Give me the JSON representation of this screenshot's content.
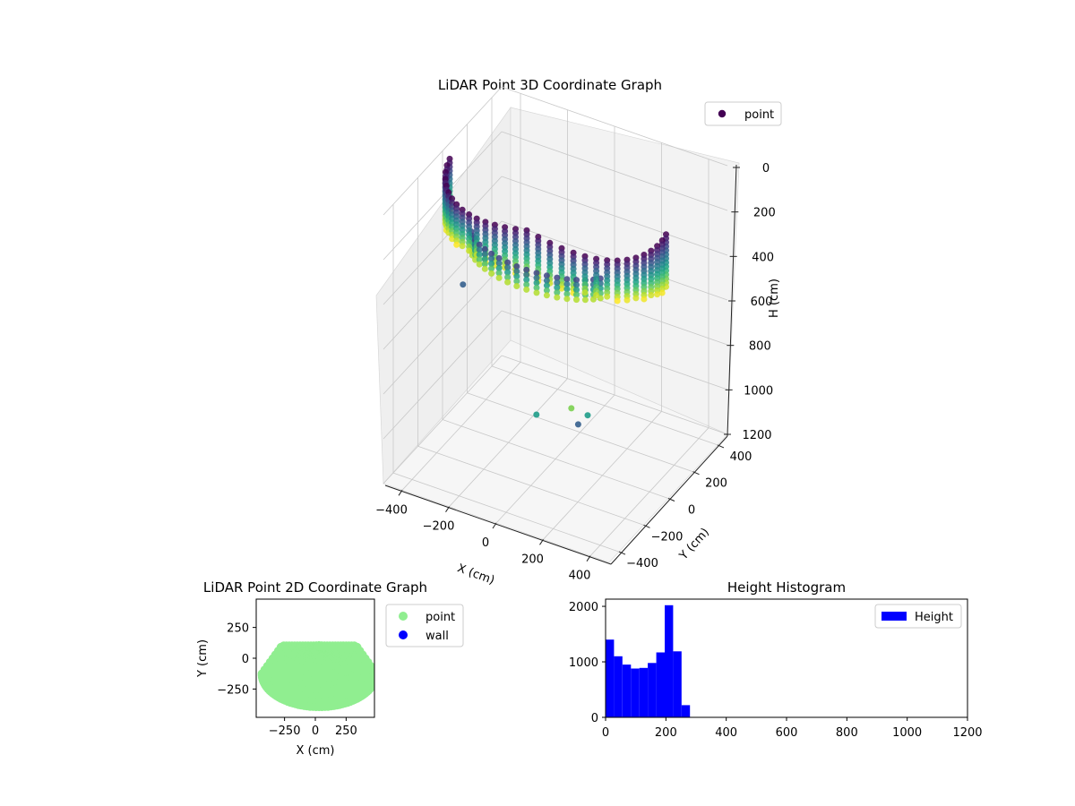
{
  "chart_data": [
    {
      "type": "scatter",
      "title": "LiDAR Point 3D Coordinate Graph",
      "xlabel": "X (cm)",
      "ylabel": "Y (cm)",
      "zlabel": "H (cm)",
      "xticks": [
        "−400",
        "−200",
        "0",
        "200",
        "400"
      ],
      "yticks": [
        "−400",
        "−200",
        "0",
        "200",
        "400"
      ],
      "zticks": [
        "0",
        "200",
        "400",
        "600",
        "800",
        "1000",
        "1200"
      ],
      "xlim": [
        -480,
        480
      ],
      "ylim": [
        -480,
        480
      ],
      "zlim": [
        1200,
        0
      ],
      "zinverted": true,
      "colormap": "viridis",
      "legend": {
        "entries": [
          "point"
        ],
        "location": "upper right"
      },
      "series_name": "point",
      "point_color": "#440154",
      "description_points": "Points arranged in vertical columns along an arc of radius about 460 cm around the sensor, heights 0–280 cm, plus a few scattered outliers.",
      "outliers": [
        {
          "x": -430,
          "y": 70,
          "h": 620
        },
        {
          "x": -60,
          "y": -40,
          "h": 1000
        },
        {
          "x": 120,
          "y": -100,
          "h": 870
        },
        {
          "x": 170,
          "y": -140,
          "h": 900
        },
        {
          "x": 200,
          "y": -120,
          "h": 860
        }
      ]
    },
    {
      "type": "scatter",
      "title": "LiDAR Point 2D Coordinate Graph",
      "xlabel": "X (cm)",
      "ylabel": "Y (cm)",
      "xticks": [
        "−250",
        "0",
        "250"
      ],
      "yticks": [
        "250",
        "0",
        "−250"
      ],
      "xlim": [
        -480,
        480
      ],
      "ylim": [
        -480,
        480
      ],
      "legend": {
        "entries": [
          "point",
          "wall"
        ],
        "location": "outside right"
      },
      "series": [
        {
          "name": "point",
          "color": "#90ee90"
        },
        {
          "name": "wall",
          "color": "#0000ff"
        }
      ]
    },
    {
      "type": "bar",
      "title": "Height Histogram",
      "xticks": [
        "0",
        "200",
        "400",
        "600",
        "800",
        "1000",
        "1200"
      ],
      "yticks": [
        "0",
        "1000",
        "2000"
      ],
      "xlim": [
        0,
        1200
      ],
      "ylim": [
        0,
        2130
      ],
      "bin_width": 28,
      "bin_starts": [
        0,
        28,
        56,
        84,
        112,
        140,
        168,
        196,
        224,
        252
      ],
      "values": [
        1400,
        1100,
        950,
        880,
        890,
        980,
        1170,
        2020,
        1190,
        220
      ],
      "bar_color": "#0000ff",
      "legend": {
        "entries": [
          "Height"
        ],
        "location": "upper right"
      },
      "series_name": "Height"
    }
  ]
}
